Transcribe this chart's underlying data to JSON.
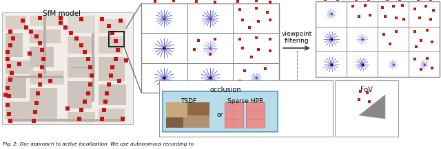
{
  "sfm_label": "SfM model",
  "viewpoint_filtering_label": "viewpoint\nfiltering",
  "occlusion_label": "occlusion",
  "fov_label": "FoV",
  "tsdf_label": "TSDF",
  "sparse_hpr_label": "Sparse HPR",
  "or_label": "or",
  "caption": "Fig. 2: Our approach to active localization. We use autonomous recording to",
  "bg_color": "#ffffff",
  "red_dot_color": "#cc1111",
  "blue_spoke_color": "#6666cc",
  "blue_spoke_light": "#aaaadd",
  "grid_line_color": "#888888",
  "arrow_color": "#333333",
  "sfm_map_color": "#e8e4e0",
  "inner_box_color": "#85c8d8",
  "inner_box_bg": "#b8dde8"
}
